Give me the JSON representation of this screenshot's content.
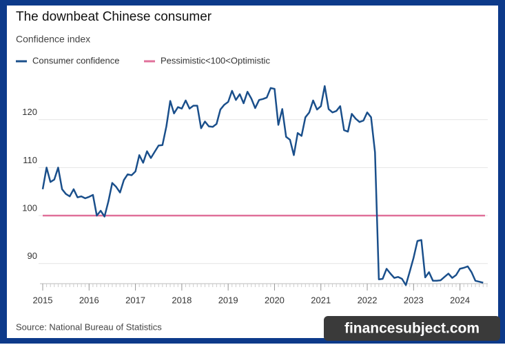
{
  "chart_data": {
    "type": "line",
    "title": "The downbeat Chinese consumer",
    "subtitle": "Confidence index",
    "source": "Source: National Bureau of Statistics",
    "watermark": "financesubject.com",
    "x": [
      2015,
      2015.083,
      2015.167,
      2015.25,
      2015.333,
      2015.417,
      2015.5,
      2015.583,
      2015.667,
      2015.75,
      2015.833,
      2015.917,
      2016,
      2016.083,
      2016.167,
      2016.25,
      2016.333,
      2016.417,
      2016.5,
      2016.583,
      2016.667,
      2016.75,
      2016.833,
      2016.917,
      2017,
      2017.083,
      2017.167,
      2017.25,
      2017.333,
      2017.417,
      2017.5,
      2017.583,
      2017.667,
      2017.75,
      2017.833,
      2017.917,
      2018,
      2018.083,
      2018.167,
      2018.25,
      2018.333,
      2018.417,
      2018.5,
      2018.583,
      2018.667,
      2018.75,
      2018.833,
      2018.917,
      2019,
      2019.083,
      2019.167,
      2019.25,
      2019.333,
      2019.417,
      2019.5,
      2019.583,
      2019.667,
      2019.75,
      2019.833,
      2019.917,
      2020,
      2020.083,
      2020.167,
      2020.25,
      2020.333,
      2020.417,
      2020.5,
      2020.583,
      2020.667,
      2020.75,
      2020.833,
      2020.917,
      2021,
      2021.083,
      2021.167,
      2021.25,
      2021.333,
      2021.417,
      2021.5,
      2021.583,
      2021.667,
      2021.75,
      2021.833,
      2021.917,
      2022,
      2022.083,
      2022.167,
      2022.25,
      2022.333,
      2022.417,
      2022.5,
      2022.583,
      2022.667,
      2022.75,
      2022.833,
      2022.917,
      2023,
      2023.083,
      2023.167,
      2023.25,
      2023.333,
      2023.417,
      2023.5,
      2023.583,
      2023.667,
      2023.75,
      2023.833,
      2023.917,
      2024,
      2024.083,
      2024.167,
      2024.25,
      2024.333,
      2024.417,
      2024.5
    ],
    "series": [
      {
        "name": "Consumer confidence",
        "color": "#1a4f8b",
        "values": [
          105.5,
          110,
          107,
          107.5,
          110,
          105.5,
          104.5,
          104,
          105.5,
          103.8,
          104,
          103.6,
          103.9,
          104.3,
          100,
          101,
          99.8,
          103,
          106.8,
          106,
          104.8,
          107.4,
          108.6,
          108.4,
          109.2,
          112.6,
          111,
          113.4,
          112,
          113.3,
          114.6,
          114.7,
          118.6,
          123.9,
          121.3,
          122.6,
          122.3,
          124,
          122.3,
          122.9,
          122.9,
          118.2,
          119.6,
          118.6,
          118.5,
          119.1,
          122.1,
          123.1,
          123.7,
          126,
          124.1,
          125.3,
          123.4,
          125.8,
          124.4,
          122.4,
          124.1,
          124.3,
          124.6,
          126.6,
          126.4,
          118.9,
          122.2,
          116.4,
          115.8,
          112.6,
          117.2,
          116.6,
          120.5,
          121.5,
          124,
          122.1,
          122.8,
          127,
          122.2,
          121.5,
          121.8,
          122.8,
          117.8,
          117.5,
          121.2,
          120.2,
          119.5,
          119.8,
          121.5,
          120.5,
          113.2,
          86.7,
          86.8,
          88.9,
          87.9,
          87,
          87.2,
          86.8,
          85.5,
          88.3,
          91.2,
          94.7,
          94.9,
          87.1,
          88.2,
          86.4,
          86.4,
          86.5,
          87.2,
          87.9,
          87,
          87.6,
          88.9,
          89.1,
          89.4,
          88.2,
          86.4,
          86.2,
          86
        ]
      }
    ],
    "reference_line": {
      "name": "Pessimistic<100<Optimistic",
      "value": 100,
      "color": "#e0709a"
    },
    "xlim": [
      2015,
      2024.6
    ],
    "xticks": [
      2015,
      2016,
      2017,
      2018,
      2019,
      2020,
      2021,
      2022,
      2023,
      2024
    ],
    "ylim": [
      85.8,
      128
    ],
    "yticks": [
      90,
      100,
      110,
      120
    ],
    "grid": true
  }
}
